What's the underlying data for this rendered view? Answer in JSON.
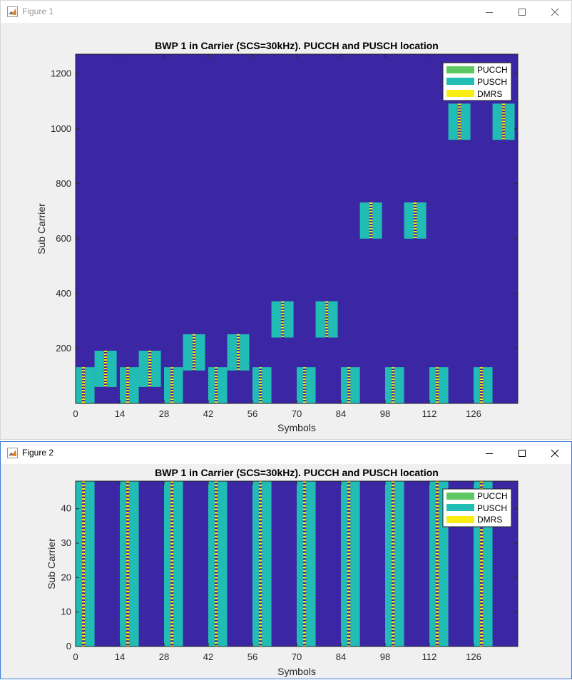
{
  "colors": {
    "background": "#3b27a3",
    "pucch": "#5ec962",
    "pusch": "#21bcb4",
    "dmrs": "#f9ee14"
  },
  "windows": [
    {
      "title": "Figure 1",
      "chart_data": {
        "type": "heatmap",
        "title": "BWP 1 in Carrier (SCS=30kHz). PUCCH and PUSCH location",
        "xlabel": "Symbols",
        "ylabel": "Sub Carrier",
        "xlim": [
          0,
          140
        ],
        "ylim": [
          0,
          1272
        ],
        "xticks": [
          0,
          14,
          28,
          42,
          56,
          70,
          84,
          98,
          112,
          126
        ],
        "yticks": [
          200,
          400,
          600,
          800,
          1000,
          1200
        ],
        "legend": {
          "position": "top-right",
          "entries": [
            "PUCCH",
            "PUSCH",
            "DMRS"
          ]
        },
        "pusch_allocations": [
          {
            "x0": 0,
            "x1": 6,
            "y0": 0,
            "y1": 132,
            "dmrs": 2
          },
          {
            "x0": 6,
            "x1": 13,
            "y0": 60,
            "y1": 192,
            "dmrs": 9
          },
          {
            "x0": 14,
            "x1": 20,
            "y0": 0,
            "y1": 132,
            "dmrs": 16
          },
          {
            "x0": 20,
            "x1": 27,
            "y0": 60,
            "y1": 192,
            "dmrs": 23
          },
          {
            "x0": 28,
            "x1": 34,
            "y0": 0,
            "y1": 132,
            "dmrs": 30
          },
          {
            "x0": 34,
            "x1": 41,
            "y0": 120,
            "y1": 252,
            "dmrs": 37
          },
          {
            "x0": 42,
            "x1": 48,
            "y0": 0,
            "y1": 132,
            "dmrs": 44
          },
          {
            "x0": 48,
            "x1": 55,
            "y0": 120,
            "y1": 252,
            "dmrs": 51
          },
          {
            "x0": 56,
            "x1": 62,
            "y0": 0,
            "y1": 132,
            "dmrs": 58
          },
          {
            "x0": 62,
            "x1": 69,
            "y0": 240,
            "y1": 372,
            "dmrs": 65
          },
          {
            "x0": 70,
            "x1": 76,
            "y0": 0,
            "y1": 132,
            "dmrs": 72
          },
          {
            "x0": 76,
            "x1": 83,
            "y0": 240,
            "y1": 372,
            "dmrs": 79
          },
          {
            "x0": 84,
            "x1": 90,
            "y0": 0,
            "y1": 132,
            "dmrs": 86
          },
          {
            "x0": 90,
            "x1": 97,
            "y0": 600,
            "y1": 732,
            "dmrs": 93
          },
          {
            "x0": 98,
            "x1": 104,
            "y0": 0,
            "y1": 132,
            "dmrs": 100
          },
          {
            "x0": 104,
            "x1": 111,
            "y0": 600,
            "y1": 732,
            "dmrs": 107
          },
          {
            "x0": 112,
            "x1": 118,
            "y0": 0,
            "y1": 132,
            "dmrs": 114
          },
          {
            "x0": 118,
            "x1": 125,
            "y0": 960,
            "y1": 1092,
            "dmrs": 121
          },
          {
            "x0": 126,
            "x1": 132,
            "y0": 0,
            "y1": 132,
            "dmrs": 128
          },
          {
            "x0": 132,
            "x1": 139,
            "y0": 960,
            "y1": 1092,
            "dmrs": 135
          }
        ]
      }
    },
    {
      "title": "Figure 2",
      "chart_data": {
        "type": "heatmap",
        "title": "BWP 1 in Carrier (SCS=30kHz). PUCCH and PUSCH location",
        "xlabel": "Symbols",
        "ylabel": "Sub Carrier",
        "xlim": [
          0,
          140
        ],
        "ylim": [
          0,
          48
        ],
        "xticks": [
          0,
          14,
          28,
          42,
          56,
          70,
          84,
          98,
          112,
          126
        ],
        "yticks": [
          0,
          10,
          20,
          30,
          40
        ],
        "legend": {
          "position": "top-right",
          "entries": [
            "PUCCH",
            "PUSCH",
            "DMRS"
          ]
        },
        "pusch_allocations": [
          {
            "x0": 0,
            "x1": 6,
            "y0": 0,
            "y1": 48,
            "dmrs": 2
          },
          {
            "x0": 14,
            "x1": 20,
            "y0": 0,
            "y1": 48,
            "dmrs": 16
          },
          {
            "x0": 28,
            "x1": 34,
            "y0": 0,
            "y1": 48,
            "dmrs": 30
          },
          {
            "x0": 42,
            "x1": 48,
            "y0": 0,
            "y1": 48,
            "dmrs": 44
          },
          {
            "x0": 56,
            "x1": 62,
            "y0": 0,
            "y1": 48,
            "dmrs": 58
          },
          {
            "x0": 70,
            "x1": 76,
            "y0": 0,
            "y1": 48,
            "dmrs": 72
          },
          {
            "x0": 84,
            "x1": 90,
            "y0": 0,
            "y1": 48,
            "dmrs": 86
          },
          {
            "x0": 98,
            "x1": 104,
            "y0": 0,
            "y1": 48,
            "dmrs": 100
          },
          {
            "x0": 112,
            "x1": 118,
            "y0": 0,
            "y1": 48,
            "dmrs": 114
          },
          {
            "x0": 126,
            "x1": 132,
            "y0": 0,
            "y1": 48,
            "dmrs": 128
          }
        ]
      }
    }
  ]
}
